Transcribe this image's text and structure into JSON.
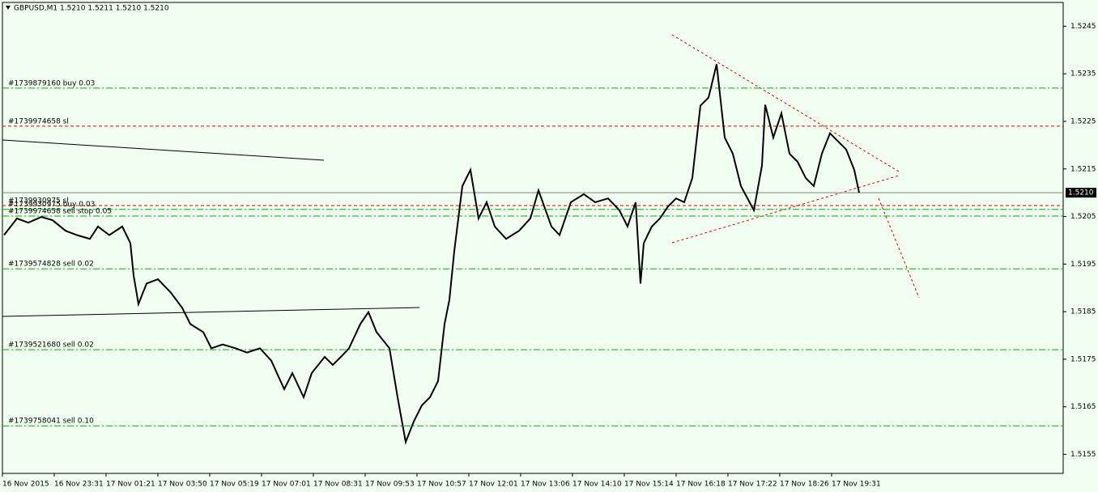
{
  "chart_data": {
    "type": "line",
    "title": "GBPUSD,M1  1.5210 1.5211 1.5210 1.5210",
    "xlim": [
      0,
      655
    ],
    "xticks": [
      {
        "value": 0,
        "label": "16 Nov 2015"
      },
      {
        "value": 32,
        "label": "16 Nov 23:31"
      },
      {
        "value": 64,
        "label": "17 Nov 01:21"
      },
      {
        "value": 96,
        "label": "17 Nov 03:50"
      },
      {
        "value": 128,
        "label": "17 Nov 05:19"
      },
      {
        "value": 160,
        "label": "17 Nov 07:01"
      },
      {
        "value": 192,
        "label": "17 Nov 08:31"
      },
      {
        "value": 224,
        "label": "17 Nov 09:53"
      },
      {
        "value": 256,
        "label": "17 Nov 10:57"
      },
      {
        "value": 288,
        "label": "17 Nov 12:01"
      },
      {
        "value": 320,
        "label": "17 Nov 13:06"
      },
      {
        "value": 352,
        "label": "17 Nov 14:10"
      },
      {
        "value": 384,
        "label": "17 Nov 15:14"
      },
      {
        "value": 416,
        "label": "17 Nov 16:18"
      },
      {
        "value": 448,
        "label": "17 Nov 17:22"
      },
      {
        "value": 480,
        "label": "17 Nov 18:26"
      },
      {
        "value": 512,
        "label": "17 Nov 19:31"
      }
    ],
    "ylim": [
      1.5151,
      1.525
    ],
    "yticks": [
      1.5155,
      1.5165,
      1.5175,
      1.5185,
      1.5195,
      1.5205,
      1.5215,
      1.5225,
      1.5235,
      1.5245
    ],
    "series": [
      {
        "name": "GBPUSD",
        "color": "#000000",
        "x": [
          1,
          9,
          16,
          24,
          31,
          39,
          46,
          54,
          59,
          66,
          74,
          79,
          81,
          84,
          89,
          96,
          104,
          111,
          116,
          124,
          129,
          136,
          144,
          151,
          159,
          166,
          174,
          179,
          186,
          191,
          199,
          204,
          209,
          214,
          221,
          226,
          231,
          239,
          244,
          249,
          254,
          259,
          264,
          269,
          273,
          276,
          279,
          284,
          289,
          294,
          299,
          304,
          311,
          319,
          326,
          331,
          339,
          344,
          351,
          359,
          366,
          374,
          381,
          386,
          391,
          394,
          396,
          401,
          406,
          411,
          416,
          421,
          426,
          431,
          436,
          441,
          446,
          451,
          456,
          464,
          469,
          471,
          476,
          481,
          486,
          491,
          496,
          501,
          506,
          511,
          516,
          521,
          526,
          529
        ],
        "values": [
          1.52011,
          1.52046,
          1.52037,
          1.52049,
          1.52042,
          1.5202,
          1.52011,
          1.52003,
          1.52029,
          1.52011,
          1.52029,
          1.51994,
          1.51926,
          1.51866,
          1.51909,
          1.51918,
          1.5189,
          1.51858,
          1.51824,
          1.51807,
          1.51773,
          1.51781,
          1.51773,
          1.51764,
          1.51773,
          1.51747,
          1.51687,
          1.51721,
          1.5167,
          1.51721,
          1.51755,
          1.51738,
          1.51755,
          1.51773,
          1.51824,
          1.51849,
          1.51807,
          1.51773,
          1.5167,
          1.51576,
          1.51619,
          1.51653,
          1.5167,
          1.51704,
          1.51824,
          1.51875,
          1.51977,
          1.52114,
          1.52148,
          1.52046,
          1.5208,
          1.52029,
          1.52003,
          1.5202,
          1.52046,
          1.52105,
          1.52029,
          1.52011,
          1.5208,
          1.52097,
          1.5208,
          1.52088,
          1.52063,
          1.52029,
          1.5208,
          1.51909,
          1.51994,
          1.52029,
          1.52046,
          1.52071,
          1.52088,
          1.5208,
          1.52131,
          1.52283,
          1.523,
          1.5237,
          1.52216,
          1.52182,
          1.52114,
          1.52063,
          1.52157,
          1.52285,
          1.52216,
          1.52267,
          1.52182,
          1.52165,
          1.52131,
          1.52114,
          1.52182,
          1.52225,
          1.52208,
          1.52191,
          1.52148,
          1.521
        ]
      }
    ],
    "current_price": {
      "value": 1.521,
      "label": "1.5210"
    },
    "levels": [
      {
        "label": "#1739879160 buy 0.03",
        "price": 1.5232,
        "color": "#00b000"
      },
      {
        "label": "#1739974658 sl",
        "price": 1.5224,
        "color": "#e00000"
      },
      {
        "label": "#1739930975 sl",
        "price": 1.52073,
        "color": "#e00000"
      },
      {
        "label": "#1739930975 buy 0.03",
        "price": 1.52065,
        "color": "#00b000"
      },
      {
        "label": "#1739974658 sell stop 0.05",
        "price": 1.52051,
        "color": "#00b000"
      },
      {
        "label": "#1739574828 sell 0.02",
        "price": 1.5194,
        "color": "#00b000"
      },
      {
        "label": "#1739521680 sell 0.02",
        "price": 1.5177,
        "color": "#00b000"
      },
      {
        "label": "#1739758041 sell 0.10",
        "price": 1.5161,
        "color": "#00b000"
      }
    ]
  }
}
